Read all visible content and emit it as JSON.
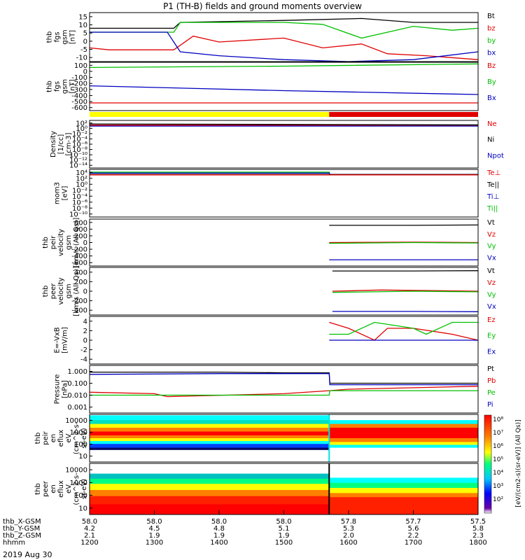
{
  "title": "P1 (TH-B) fields and ground moments overview",
  "date_label": "2019 Aug 30",
  "colorbar": {
    "ticks": [
      "10⁸",
      "10⁷",
      "10⁶",
      "10⁵",
      "10⁴",
      "10³",
      "10²"
    ],
    "label": "[eV/(cm2-s)(sr-eV)]  (All Qs)]"
  },
  "time_axis": {
    "ticks": [
      "1200",
      "1300",
      "1400",
      "1500",
      "1600",
      "1700",
      "1800"
    ],
    "rows": [
      {
        "label": "thb_X-GSM",
        "values": [
          "58.0",
          "58.0",
          "58.0",
          "58.0",
          "57.8",
          "57.7",
          "57.5"
        ]
      },
      {
        "label": "thb_Y-GSM",
        "values": [
          "4.2",
          "4.5",
          "4.8",
          "5.1",
          "5.3",
          "5.6",
          "5.8"
        ]
      },
      {
        "label": "thb_Z-GSM",
        "values": [
          "2.1",
          "1.9",
          "1.9",
          "1.9",
          "2.0",
          "2.2",
          "2.3"
        ]
      },
      {
        "label": "hhmm",
        "values": [
          "1200",
          "1300",
          "1400",
          "1500",
          "1600",
          "1700",
          "1800"
        ]
      }
    ]
  },
  "colors": {
    "black": "#000000",
    "red": "#e00000",
    "green": "#00c000",
    "blue": "#0000c0",
    "yellow": "#ffff00"
  },
  "chart_data": [
    {
      "type": "line",
      "ylabel": [
        "thb",
        "fgs",
        "gsm",
        "[nT]"
      ],
      "yticks": [
        "15",
        "10",
        "5",
        "0",
        "-5",
        "-10"
      ],
      "ylim": [
        -10,
        15
      ],
      "legend": [
        "Bt",
        "bz",
        "by",
        "bx"
      ],
      "series": [
        {
          "name": "Bt",
          "color": "black",
          "x": [
            1200,
            1330,
            1340,
            1500,
            1620,
            1700,
            1800
          ],
          "y": [
            7,
            7,
            10,
            11,
            12,
            10,
            10
          ]
        },
        {
          "name": "bz",
          "color": "red",
          "x": [
            1200,
            1230,
            1330,
            1360,
            1400,
            1500,
            1560,
            1620,
            1660,
            1720,
            1800
          ],
          "y": [
            -3,
            -4,
            -4,
            3,
            0,
            2,
            -3,
            -1,
            -6,
            -7,
            -9
          ]
        },
        {
          "name": "by",
          "color": "green",
          "x": [
            1200,
            1330,
            1340,
            1400,
            1500,
            1560,
            1620,
            1700,
            1760,
            1800
          ],
          "y": [
            5,
            5,
            10,
            10,
            10,
            9,
            2,
            8,
            6,
            7
          ]
        },
        {
          "name": "bx",
          "color": "blue",
          "x": [
            1200,
            1320,
            1340,
            1400,
            1500,
            1600,
            1700,
            1800
          ],
          "y": [
            5,
            5,
            -5,
            -7,
            -9,
            -10,
            -9,
            -5
          ]
        }
      ]
    },
    {
      "type": "line",
      "ylabel": [
        "thb",
        "fgs",
        "gsm",
        "[nT]"
      ],
      "yticks": [
        "100",
        "0",
        "-100",
        "-200",
        "-300",
        "-400",
        "-500",
        "-600"
      ],
      "ylim": [
        -650,
        100
      ],
      "legend": [
        "Bz",
        "By",
        "Bx"
      ],
      "series": [
        {
          "name": "Bz",
          "color": "red",
          "x": [
            1200,
            1800
          ],
          "y": [
            -530,
            -530
          ]
        },
        {
          "name": "By",
          "color": "green",
          "x": [
            1200,
            1500,
            1800
          ],
          "y": [
            20,
            40,
            75
          ]
        },
        {
          "name": "Bx",
          "color": "blue",
          "x": [
            1200,
            1500,
            1800
          ],
          "y": [
            -265,
            -340,
            -400
          ]
        }
      ]
    },
    {
      "type": "line",
      "ylabel": [
        "Density",
        "[1/cc]",
        "[cm-3]"
      ],
      "yticks": [
        "10²",
        "10⁰",
        "10⁻²",
        "10⁻⁴",
        "10⁻⁶",
        "10⁻⁸",
        "10⁻¹⁰",
        "10⁻¹²",
        "10⁻¹⁴"
      ],
      "log": true,
      "ylim": [
        -14,
        2
      ],
      "legend": [
        "Ne",
        "Ni",
        "Npot"
      ],
      "series": [
        {
          "name": "Ne",
          "color": "red",
          "x": [
            1200,
            1800
          ],
          "y": [
            0.4,
            0.4
          ]
        },
        {
          "name": "Npot",
          "color": "blue",
          "x": [
            1200,
            1800
          ],
          "y": [
            0.1,
            0.1
          ]
        },
        {
          "name": "Ni",
          "color": "black",
          "x": [
            1200,
            1800
          ],
          "y": [
            0.8,
            0.5
          ]
        }
      ]
    },
    {
      "type": "line",
      "ylabel": [
        "mom3",
        "[eV]"
      ],
      "yticks": [
        "10⁴",
        "10²",
        "10⁰",
        "10⁻²",
        "10⁻⁴",
        "10⁻⁶",
        "10⁻⁸",
        "10⁻¹⁰"
      ],
      "log": true,
      "ylim": [
        -10,
        4
      ],
      "legend": [
        "Te⊥",
        "Te||",
        "Ti⊥",
        "Ti||"
      ],
      "series": [
        {
          "name": "Ti||",
          "color": "green",
          "x": [
            1200,
            1570,
            1571,
            1800
          ],
          "y": [
            3.2,
            3.2,
            2.5,
            2.5
          ]
        },
        {
          "name": "Ti⊥",
          "color": "blue",
          "x": [
            1200,
            1570,
            1571,
            1800
          ],
          "y": [
            2.9,
            2.9,
            2.5,
            2.5
          ]
        },
        {
          "name": "Te||",
          "color": "black",
          "x": [
            1200,
            1800
          ],
          "y": [
            2.5,
            2.5
          ]
        },
        {
          "name": "Te⊥",
          "color": "red",
          "x": [
            1200,
            1800
          ],
          "y": [
            2.4,
            2.4
          ]
        }
      ]
    },
    {
      "type": "line",
      "ylabel": [
        "thb",
        "peir",
        "velocity",
        "gsm",
        "[km/s (All Qs)]"
      ],
      "yticks": [
        "600",
        "400",
        "200",
        "0",
        "-200",
        "-400",
        "-600"
      ],
      "ylim": [
        -600,
        600
      ],
      "legend": [
        "Vt",
        "Vz",
        "Vy",
        "Vx"
      ],
      "series": [
        {
          "name": "Vt",
          "color": "black",
          "x": [
            1570,
            1700,
            1800
          ],
          "y": [
            440,
            440,
            450
          ]
        },
        {
          "name": "Vz",
          "color": "red",
          "x": [
            1570,
            1700,
            1800
          ],
          "y": [
            0,
            10,
            0
          ]
        },
        {
          "name": "Vy",
          "color": "green",
          "x": [
            1570,
            1700,
            1800
          ],
          "y": [
            -20,
            0,
            -10
          ]
        },
        {
          "name": "Vx",
          "color": "blue",
          "x": [
            1570,
            1700,
            1800
          ],
          "y": [
            -440,
            -440,
            -440
          ]
        }
      ]
    },
    {
      "type": "line",
      "ylabel": [
        "thb",
        "peer",
        "velocity",
        "gsm",
        "[km/s (All Qs)]"
      ],
      "yticks": [
        "400",
        "200",
        "0",
        "-200",
        "-400"
      ],
      "ylim": [
        -400,
        400
      ],
      "legend": [
        "Vt",
        "Vz",
        "Vy",
        "Vx"
      ],
      "series": [
        {
          "name": "Vt",
          "color": "black",
          "x": [
            1575,
            1700,
            1800
          ],
          "y": [
            340,
            340,
            345
          ]
        },
        {
          "name": "Vz",
          "color": "red",
          "x": [
            1575,
            1650,
            1800
          ],
          "y": [
            0,
            20,
            0
          ]
        },
        {
          "name": "Vy",
          "color": "green",
          "x": [
            1575,
            1700,
            1800
          ],
          "y": [
            -20,
            0,
            -10
          ]
        },
        {
          "name": "Vx",
          "color": "blue",
          "x": [
            1575,
            1700,
            1800
          ],
          "y": [
            -340,
            -340,
            -345
          ]
        }
      ]
    },
    {
      "type": "line",
      "ylabel": [
        "E=-VxB",
        "[mV/m]"
      ],
      "yticks": [
        "4",
        "2",
        "0",
        "-2",
        "-4"
      ],
      "ylim": [
        -4,
        4
      ],
      "legend": [
        "Ez",
        "Ey",
        "Ex"
      ],
      "series": [
        {
          "name": "Ez",
          "color": "red",
          "x": [
            1570,
            1600,
            1640,
            1660,
            1700,
            1760,
            1800
          ],
          "y": [
            3,
            2,
            0,
            2,
            2,
            1,
            0
          ]
        },
        {
          "name": "Ey",
          "color": "green",
          "x": [
            1570,
            1600,
            1640,
            1700,
            1720,
            1760,
            1800
          ],
          "y": [
            1,
            1,
            3,
            2,
            1,
            3,
            3
          ]
        },
        {
          "name": "Ex",
          "color": "blue",
          "x": [
            1570,
            1800
          ],
          "y": [
            0,
            0
          ]
        }
      ]
    },
    {
      "type": "line",
      "ylabel": [
        "Pressure",
        "[nPa]"
      ],
      "yticks": [
        "1.000",
        "0.100",
        "0.010",
        "0.001"
      ],
      "log": true,
      "ylim": [
        -3,
        0.2
      ],
      "legend": [
        "Pt",
        "Pb",
        "Pe",
        "Pi"
      ],
      "series": [
        {
          "name": "Pt",
          "color": "black",
          "x": [
            1200,
            1400,
            1500,
            1570,
            1571,
            1800
          ],
          "y": [
            -0.25,
            -0.25,
            -0.3,
            -0.3,
            -1.0,
            -1.0
          ]
        },
        {
          "name": "Pi",
          "color": "blue",
          "x": [
            1200,
            1400,
            1570,
            1571,
            1800
          ],
          "y": [
            -0.4,
            -0.35,
            -0.35,
            -1.1,
            -1.1
          ]
        },
        {
          "name": "Pb",
          "color": "red",
          "x": [
            1200,
            1300,
            1320,
            1500,
            1570,
            1600,
            1800
          ],
          "y": [
            -1.6,
            -1.7,
            -1.9,
            -1.7,
            -1.5,
            -1.4,
            -1.2
          ]
        },
        {
          "name": "Pe",
          "color": "green",
          "x": [
            1200,
            1570,
            1571,
            1800
          ],
          "y": [
            -1.8,
            -1.8,
            -1.5,
            -1.5
          ]
        }
      ]
    },
    {
      "type": "heatmap",
      "ylabel": [
        "thb",
        "peir",
        "en",
        "eflux",
        "eV",
        "(cm^2-s-",
        "sr-eV)"
      ],
      "yticks": [
        "10000",
        "1000",
        "100",
        "10"
      ],
      "log": true,
      "ylim": [
        0.7,
        4.3
      ]
    },
    {
      "type": "heatmap",
      "ylabel": [
        "thb",
        "peer",
        "en",
        "eflux",
        "eV",
        "(cm^2-s-",
        "sr-eV)"
      ],
      "yticks": [
        "10000",
        "1000",
        "100",
        "10"
      ],
      "log": true,
      "ylim": [
        0.7,
        4.3
      ]
    }
  ],
  "right_labels": [
    [
      "Bt",
      "bz",
      "by",
      "bx"
    ],
    [
      "Bz",
      "By",
      "Bx"
    ],
    [
      "Ne",
      "Ni",
      "Npot"
    ],
    [
      "Te⊥",
      "Te||",
      "Ti⊥",
      "Ti||"
    ],
    [
      "Vt",
      "Vz",
      "Vy",
      "Vx"
    ],
    [
      "Vt",
      "Vz",
      "Vy",
      "Vx"
    ],
    [
      "Ez",
      "Ey",
      "Ex"
    ],
    [
      "Pt",
      "Pb",
      "Pe",
      "Pi"
    ]
  ]
}
